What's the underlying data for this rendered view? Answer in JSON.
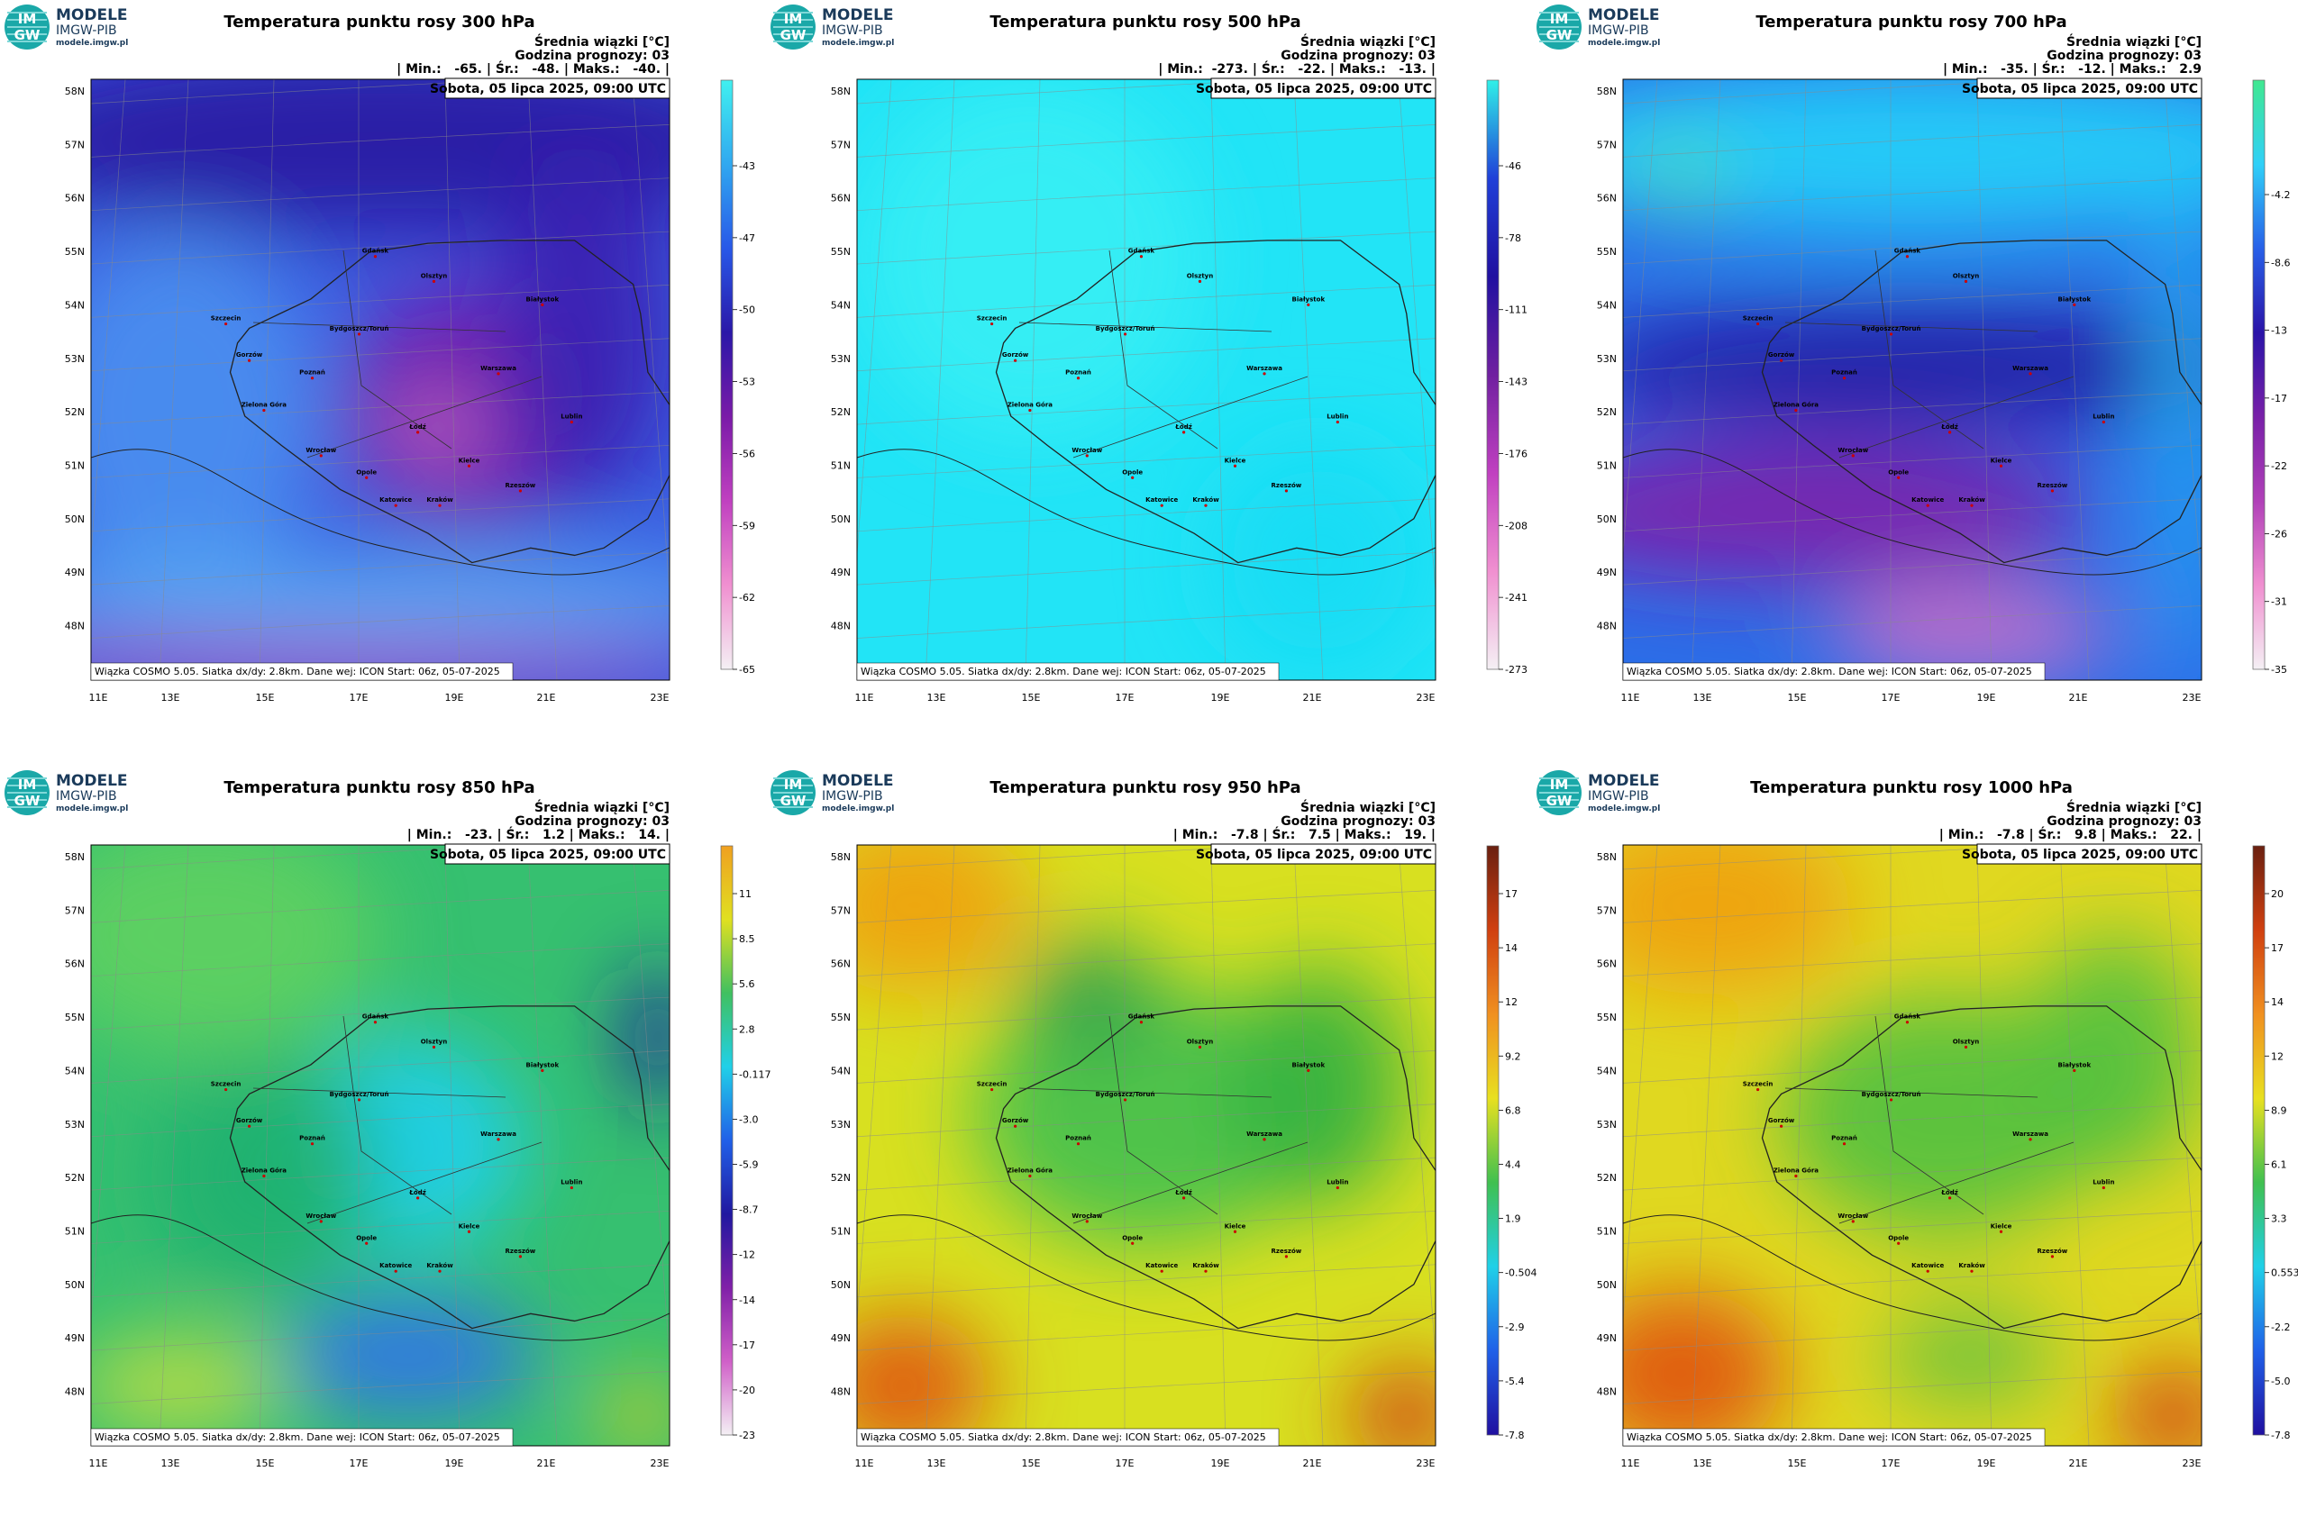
{
  "logo": {
    "badge_top": "IM",
    "badge_bottom": "GW",
    "line1": "MODELE",
    "line2": "IMGW-PIB",
    "url": "modele.imgw.pl"
  },
  "subtitle": "Średnia wiązki [°C]",
  "forecast_hour": "Godzina prognozy: 03",
  "date": "Sobota, 05 lipca 2025, 09:00 UTC",
  "footer": "Wiązka COSMO 5.05. Siatka dx/dy: 2.8km. Dane wej: ICON Start: 06z, 05-07-2025",
  "lat_labels": [
    "58N",
    "57N",
    "56N",
    "55N",
    "54N",
    "53N",
    "52N",
    "51N",
    "50N",
    "49N",
    "48N"
  ],
  "lon_labels": [
    "11E",
    "13E",
    "15E",
    "17E",
    "19E",
    "21E",
    "23E"
  ],
  "cities": [
    "Gdańsk",
    "Olsztyn",
    "Szczecin",
    "Bydgoszcz/Toruń",
    "Białystok",
    "Gorzów",
    "Poznań",
    "Warszawa",
    "Zielona Góra",
    "Łódź",
    "Lublin",
    "Wrocław",
    "Opole",
    "Kielce",
    "Katowice",
    "Kraków",
    "Rzeszów"
  ],
  "panels": [
    {
      "title": "Temperatura punktu rosy 300 hPa",
      "stats": "| Min.:   -65. | Śr.:   -48. | Maks.:   -40. |",
      "colorbar_ticks": [
        "-43",
        "-47",
        "-50",
        "-53",
        "-56",
        "-59",
        "-62",
        "-65"
      ]
    },
    {
      "title": "Temperatura punktu rosy 500 hPa",
      "stats": "| Min.:  -273. | Śr.:   -22. | Maks.:   -13. |",
      "colorbar_ticks": [
        "-46",
        "-78",
        "-111",
        "-143",
        "-176",
        "-208",
        "-241",
        "-273"
      ]
    },
    {
      "title": "Temperatura punktu rosy 700 hPa",
      "stats": "| Min.:   -35. | Śr.:   -12. | Maks.:   2.9",
      "colorbar_ticks": [
        "-4.2",
        "-8.6",
        "-13",
        "-17",
        "-22",
        "-26",
        "-31",
        "-35"
      ]
    },
    {
      "title": "Temperatura punktu rosy 850 hPa",
      "stats": "| Min.:   -23. | Śr.:   1.2 | Maks.:   14. |",
      "colorbar_ticks": [
        "11",
        "8.5",
        "5.6",
        "2.8",
        "-0.117",
        "-3.0",
        "-5.9",
        "-8.7",
        "-12",
        "-14",
        "-17",
        "-20",
        "-23"
      ]
    },
    {
      "title": "Temperatura punktu rosy 950 hPa",
      "stats": "| Min.:   -7.8 | Śr.:   7.5 | Maks.:   19. |",
      "colorbar_ticks": [
        "17",
        "14",
        "12",
        "9.2",
        "6.8",
        "4.4",
        "1.9",
        "-0.504",
        "-2.9",
        "-5.4",
        "-7.8"
      ]
    },
    {
      "title": "Temperatura punktu rosy 1000 hPa",
      "stats": "| Min.:   -7.8 | Śr.:   9.8 | Maks.:   22. |",
      "colorbar_ticks": [
        "20",
        "17",
        "14",
        "12",
        "8.9",
        "6.1",
        "3.3",
        "0.553",
        "-2.2",
        "-5.0",
        "-7.8"
      ]
    }
  ]
}
